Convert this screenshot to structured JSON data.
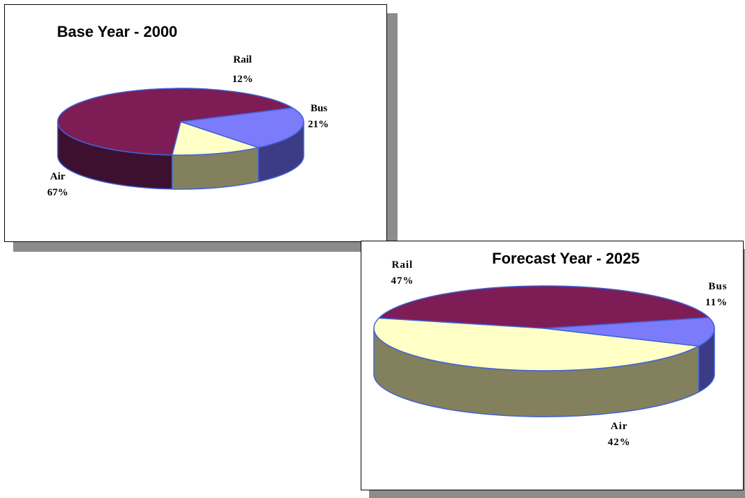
{
  "colors": {
    "air": "#7e1c56",
    "air_side": "#3e1030",
    "bus": "#7b7bfb",
    "bus_side": "#3c3c86",
    "rail": "#ffffc6",
    "rail_side": "#83805d",
    "outline": "#3f62d6",
    "shadow": "#8c8c8c"
  },
  "chart_data": [
    {
      "type": "pie",
      "title": "Base Year - 2000",
      "slices": [
        {
          "key": "rail",
          "name": "Rail",
          "value": 12,
          "label": "12%"
        },
        {
          "key": "bus",
          "name": "Bus",
          "value": 21,
          "label": "21%"
        },
        {
          "key": "air",
          "name": "Air",
          "value": 67,
          "label": "67%"
        }
      ]
    },
    {
      "type": "pie",
      "title": "Forecast Year - 2025",
      "slices": [
        {
          "key": "rail",
          "name": "Rail",
          "value": 47,
          "label": "47%"
        },
        {
          "key": "bus",
          "name": "Bus",
          "value": 11,
          "label": "11%"
        },
        {
          "key": "air",
          "name": "Air",
          "value": 42,
          "label": "42%"
        }
      ]
    }
  ]
}
